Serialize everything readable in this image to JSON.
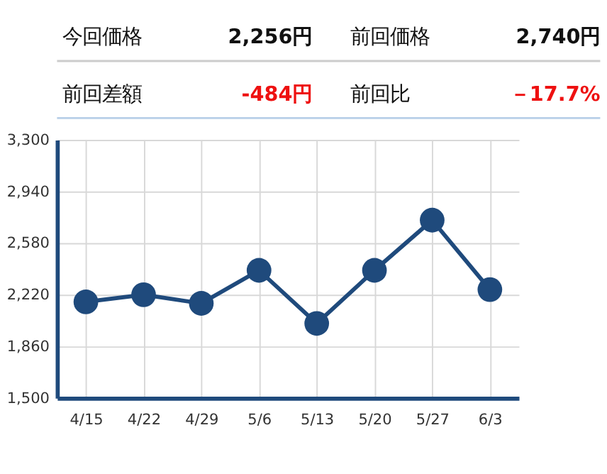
{
  "chart_data": {
    "type": "line",
    "annotations": [
      "今回価格",
      "2,256円",
      "前回価格",
      "2,740円",
      "前回差額",
      "-484円",
      "前回比",
      "－17.7%"
    ],
    "categories": [
      "4/15",
      "4/22",
      "4/29",
      "5/6",
      "5/13",
      "5/20",
      "5/27",
      "6/3"
    ],
    "series": [
      {
        "color": "#1f4a7c",
        "values": [
          2170,
          2220,
          2160,
          2390,
          2020,
          2390,
          2740,
          2256
        ]
      }
    ],
    "ylim": [
      1500,
      3300
    ],
    "yticks": [
      {
        "value": 1500,
        "label": "1,500"
      },
      {
        "value": 1860,
        "label": "1,860"
      },
      {
        "value": 2220,
        "label": "2,220"
      },
      {
        "value": 2580,
        "label": "2,580"
      },
      {
        "value": 2940,
        "label": "2,940"
      },
      {
        "value": 3300,
        "label": "3,300"
      }
    ],
    "grid": true,
    "marker": "circle",
    "line_style": "solid"
  }
}
